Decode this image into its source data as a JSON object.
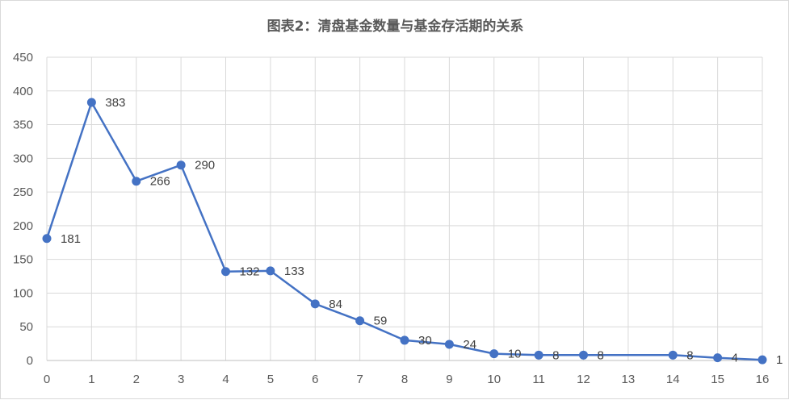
{
  "chart_data": {
    "type": "line",
    "title": "图表2：清盘基金数量与基金存活期的关系",
    "xlabel": "",
    "ylabel": "",
    "x": [
      0,
      1,
      2,
      3,
      4,
      5,
      6,
      7,
      8,
      9,
      10,
      11,
      12,
      13,
      14,
      15,
      16
    ],
    "xticks": [
      "0",
      "1",
      "2",
      "3",
      "4",
      "5",
      "6",
      "7",
      "8",
      "9",
      "10",
      "11",
      "12",
      "13",
      "14",
      "15",
      "16"
    ],
    "series": [
      {
        "name": "",
        "points": [
          {
            "x": 0,
            "y": 181
          },
          {
            "x": 1,
            "y": 383
          },
          {
            "x": 2,
            "y": 266
          },
          {
            "x": 3,
            "y": 290
          },
          {
            "x": 4,
            "y": 132
          },
          {
            "x": 5,
            "y": 133
          },
          {
            "x": 6,
            "y": 84
          },
          {
            "x": 7,
            "y": 59
          },
          {
            "x": 8,
            "y": 30
          },
          {
            "x": 9,
            "y": 24
          },
          {
            "x": 10,
            "y": 10
          },
          {
            "x": 11,
            "y": 8
          },
          {
            "x": 12,
            "y": 8
          },
          {
            "x": 14,
            "y": 8
          },
          {
            "x": 15,
            "y": 4
          },
          {
            "x": 16,
            "y": 1
          }
        ]
      }
    ],
    "ylim": [
      0,
      450
    ],
    "yticks": [
      0,
      50,
      100,
      150,
      200,
      250,
      300,
      350,
      400,
      450
    ],
    "grid": true,
    "legend": "none",
    "colors": {
      "line": "#4472c4",
      "grid": "#d9d9d9",
      "text": "#595959",
      "title": "#595959"
    }
  }
}
